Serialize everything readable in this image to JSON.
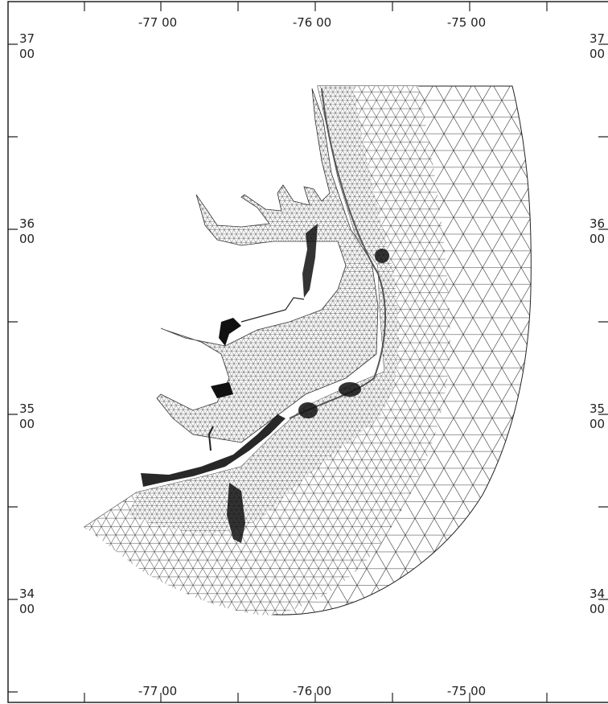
{
  "map": {
    "top_labels": [
      "-77 00",
      "-76 00",
      "-75 00"
    ],
    "bottom_labels": [
      "-77 00",
      "-76 00",
      "-75 00"
    ],
    "left_labels": [
      {
        "deg": "37",
        "min": "00"
      },
      {
        "deg": "36",
        "min": "00"
      },
      {
        "deg": "35",
        "min": "00"
      },
      {
        "deg": "34",
        "min": "00"
      }
    ],
    "right_labels": [
      {
        "deg": "37",
        "min": "00"
      },
      {
        "deg": "36",
        "min": "00"
      },
      {
        "deg": "35",
        "min": "00"
      },
      {
        "deg": "34",
        "min": "00"
      }
    ]
  }
}
